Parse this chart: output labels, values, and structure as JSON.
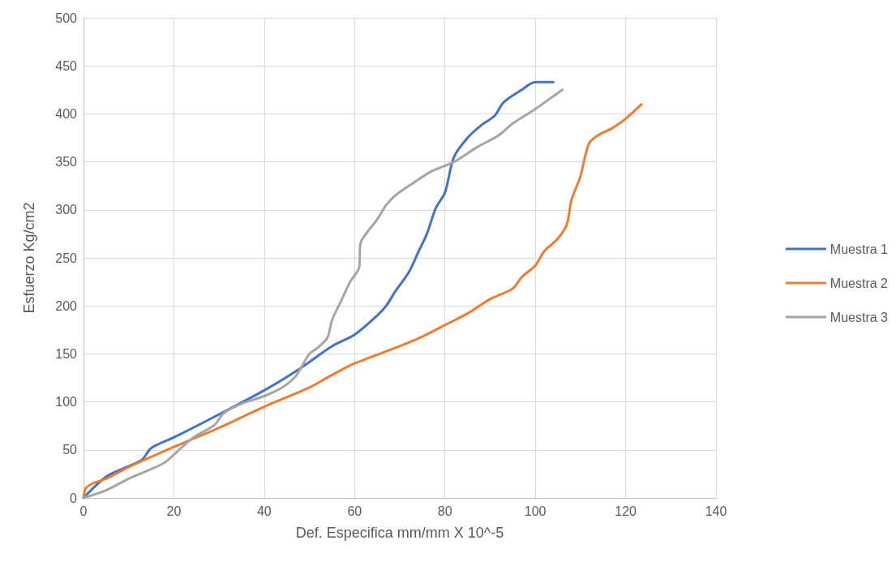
{
  "chart_data": {
    "type": "line",
    "xlabel": "Def. Especifica mm/mm X 10^-5",
    "ylabel": "Esfuerzo Kg/cm2",
    "xlim": [
      0,
      140
    ],
    "xticks": [
      0,
      20,
      40,
      60,
      80,
      100,
      120,
      140
    ],
    "ylim": [
      0,
      500
    ],
    "yticks": [
      0,
      50,
      100,
      150,
      200,
      250,
      300,
      350,
      400,
      450,
      500
    ],
    "grid": true,
    "legend": "right",
    "marker": "none",
    "line_style": "solid",
    "series": [
      {
        "name": "Muestra 1",
        "color": "#4472c4",
        "x": [
          0,
          5,
          10,
          13,
          15,
          20,
          30,
          40,
          48,
          55,
          60,
          65,
          67,
          69,
          72,
          74,
          76,
          78,
          80,
          82,
          85,
          88,
          91,
          93,
          97,
          100,
          104
        ],
        "values": [
          0,
          22,
          33,
          40,
          52,
          63,
          87,
          112,
          135,
          158,
          170,
          190,
          200,
          215,
          235,
          255,
          275,
          302,
          318,
          355,
          375,
          388,
          398,
          412,
          425,
          433,
          433
        ]
      },
      {
        "name": "Muestra 2",
        "color": "#ed7d31",
        "x": [
          0,
          0.5,
          2,
          5,
          10,
          20,
          30,
          40,
          50,
          55,
          60,
          70,
          75,
          80,
          85,
          90,
          95,
          97,
          100,
          102,
          105,
          107,
          108,
          110,
          111,
          112,
          114,
          117,
          120,
          123.5
        ],
        "values": [
          0,
          10,
          15,
          20,
          32,
          53,
          73,
          95,
          115,
          128,
          140,
          158,
          168,
          180,
          192,
          207,
          218,
          230,
          242,
          257,
          270,
          285,
          310,
          335,
          355,
          370,
          378,
          385,
          395,
          410
        ]
      },
      {
        "name": "Muestra 3",
        "color": "#a5a5a5",
        "x": [
          0,
          5,
          10,
          15,
          18,
          20,
          23,
          25,
          29,
          31,
          35,
          40,
          44,
          47,
          50,
          52,
          54,
          55,
          57,
          59,
          61,
          61.3,
          63,
          65,
          67,
          69,
          73,
          77,
          82,
          87,
          92,
          95,
          100,
          103,
          106
        ],
        "values": [
          0,
          8,
          20,
          30,
          37,
          45,
          58,
          65,
          76,
          88,
          98,
          106,
          115,
          127,
          150,
          157,
          167,
          185,
          205,
          225,
          240,
          265,
          278,
          290,
          305,
          315,
          328,
          340,
          350,
          365,
          378,
          390,
          405,
          415,
          425
        ]
      }
    ]
  }
}
